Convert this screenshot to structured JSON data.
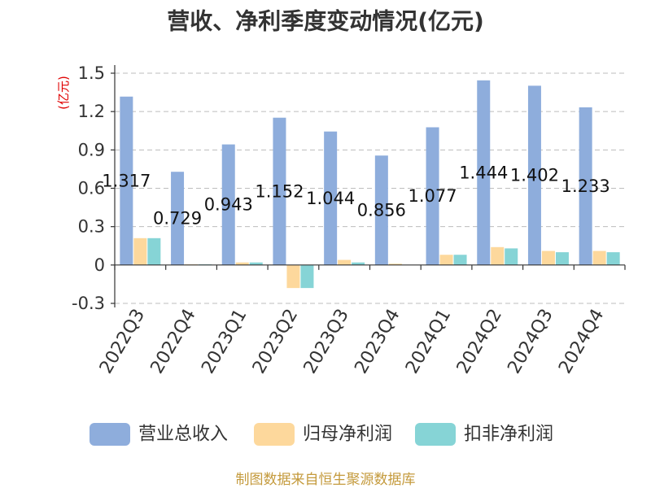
{
  "source": "制图数据来自恒生聚源数据库",
  "chart_data": {
    "type": "bar",
    "title": "营收、净利季度变动情况(亿元)",
    "ylabel": "(亿元)",
    "categories": [
      "2022Q3",
      "2022Q4",
      "2023Q1",
      "2023Q2",
      "2023Q3",
      "2023Q4",
      "2024Q1",
      "2024Q2",
      "2024Q3",
      "2024Q4"
    ],
    "ylim": [
      -0.3,
      1.5
    ],
    "yticks": [
      1.5,
      1.2,
      0.9,
      0.6,
      0.3,
      0,
      -0.3
    ],
    "grid": true,
    "legend": "bottom",
    "series": [
      {
        "name": "营业总收入",
        "color": "#8eaddc",
        "data_labels": true,
        "values": [
          1.317,
          0.729,
          0.943,
          1.152,
          1.044,
          0.856,
          1.077,
          1.444,
          1.402,
          1.233
        ]
      },
      {
        "name": "归母净利润",
        "color": "#fdd89c",
        "values": [
          0.21,
          0.005,
          0.02,
          -0.18,
          0.04,
          0.01,
          0.08,
          0.14,
          0.11,
          0.11
        ]
      },
      {
        "name": "扣非净利润",
        "color": "#86d4d6",
        "values": [
          0.21,
          0.005,
          0.02,
          -0.18,
          0.02,
          0,
          0.08,
          0.13,
          0.1,
          0.1
        ]
      }
    ]
  }
}
